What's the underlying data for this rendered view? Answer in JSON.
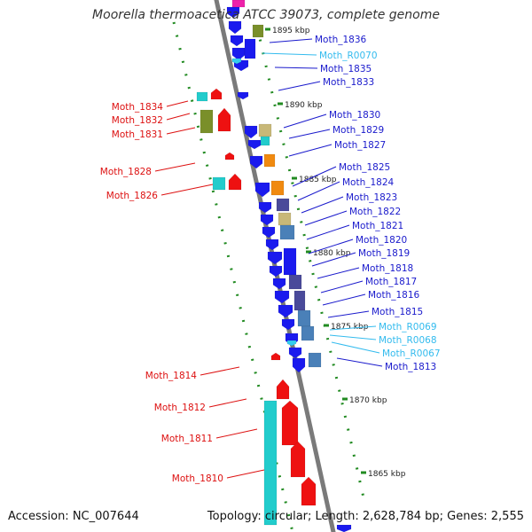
{
  "title": "Moorella thermoacetica ATCC 39073, complete genome",
  "accession_text": "Accession: NC_007644",
  "summary_text": "Topology: circular; Length: 2,628,784 bp; Genes: 2,555",
  "colors": {
    "backbone": "#7a7a7a",
    "ruler": "#228b22",
    "forward_gene": "#1a1aee",
    "reverse_gene": "#ee1111",
    "rna_gene": "#33ccee",
    "cog_cyan": "#22cccc",
    "cog_olive": "#7a8f2a",
    "cog_khaki": "#c8b878",
    "cog_orange": "#f08a10",
    "cog_slate": "#4a4a9a",
    "cog_steel": "#4a80b8",
    "cog_magenta": "#ee22aa"
  },
  "ruler_ticks": [
    "1895 kbp",
    "1890 kbp",
    "1885 kbp",
    "1880 kbp",
    "1875 kbp",
    "1870 kbp",
    "1865 kbp"
  ],
  "gene_labels": [
    {
      "text": "Moth_1836",
      "kind": "forward"
    },
    {
      "text": "Moth_R0070",
      "kind": "rna"
    },
    {
      "text": "Moth_1835",
      "kind": "forward"
    },
    {
      "text": "Moth_1833",
      "kind": "forward"
    },
    {
      "text": "Moth_1834",
      "kind": "reverse"
    },
    {
      "text": "Moth_1832",
      "kind": "reverse"
    },
    {
      "text": "Moth_1831",
      "kind": "reverse"
    },
    {
      "text": "Moth_1830",
      "kind": "forward"
    },
    {
      "text": "Moth_1829",
      "kind": "forward"
    },
    {
      "text": "Moth_1827",
      "kind": "forward"
    },
    {
      "text": "Moth_1828",
      "kind": "reverse"
    },
    {
      "text": "Moth_1825",
      "kind": "forward"
    },
    {
      "text": "Moth_1826",
      "kind": "reverse"
    },
    {
      "text": "Moth_1824",
      "kind": "forward"
    },
    {
      "text": "Moth_1823",
      "kind": "forward"
    },
    {
      "text": "Moth_1822",
      "kind": "forward"
    },
    {
      "text": "Moth_1821",
      "kind": "forward"
    },
    {
      "text": "Moth_1820",
      "kind": "forward"
    },
    {
      "text": "Moth_1819",
      "kind": "forward"
    },
    {
      "text": "Moth_1818",
      "kind": "forward"
    },
    {
      "text": "Moth_1817",
      "kind": "forward"
    },
    {
      "text": "Moth_1816",
      "kind": "forward"
    },
    {
      "text": "Moth_1815",
      "kind": "forward"
    },
    {
      "text": "Moth_R0069",
      "kind": "rna"
    },
    {
      "text": "Moth_R0068",
      "kind": "rna"
    },
    {
      "text": "Moth_R0067",
      "kind": "rna"
    },
    {
      "text": "Moth_1813",
      "kind": "forward"
    },
    {
      "text": "Moth_1814",
      "kind": "reverse"
    },
    {
      "text": "Moth_1812",
      "kind": "reverse"
    },
    {
      "text": "Moth_1811",
      "kind": "reverse"
    },
    {
      "text": "Moth_1810",
      "kind": "reverse"
    }
  ]
}
